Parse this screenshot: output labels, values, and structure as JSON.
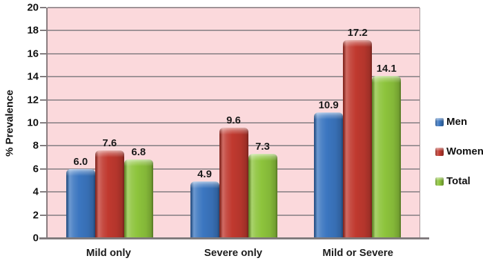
{
  "chart_data": {
    "type": "bar",
    "title": "",
    "ylabel": "% Prevalence",
    "xlabel": "",
    "categories": [
      "Mild only",
      "Severe only",
      "Mild or Severe"
    ],
    "series": [
      {
        "name": "Men",
        "color": "#3b76c0",
        "values": [
          6.0,
          4.9,
          10.9
        ]
      },
      {
        "name": "Women",
        "color": "#c0392f",
        "values": [
          7.6,
          9.6,
          17.2
        ]
      },
      {
        "name": "Total",
        "color": "#8dc43c",
        "values": [
          6.8,
          7.3,
          14.1
        ]
      }
    ],
    "data_labels_decimals": 1,
    "ylim": [
      0,
      20
    ],
    "ytick_step": 2,
    "grid": true,
    "legend_position": "right",
    "plot_background": "#fbd9dc",
    "gridline_color": "#9e9296",
    "axis_color": "#7f7a7c",
    "text_color": "#111111"
  }
}
